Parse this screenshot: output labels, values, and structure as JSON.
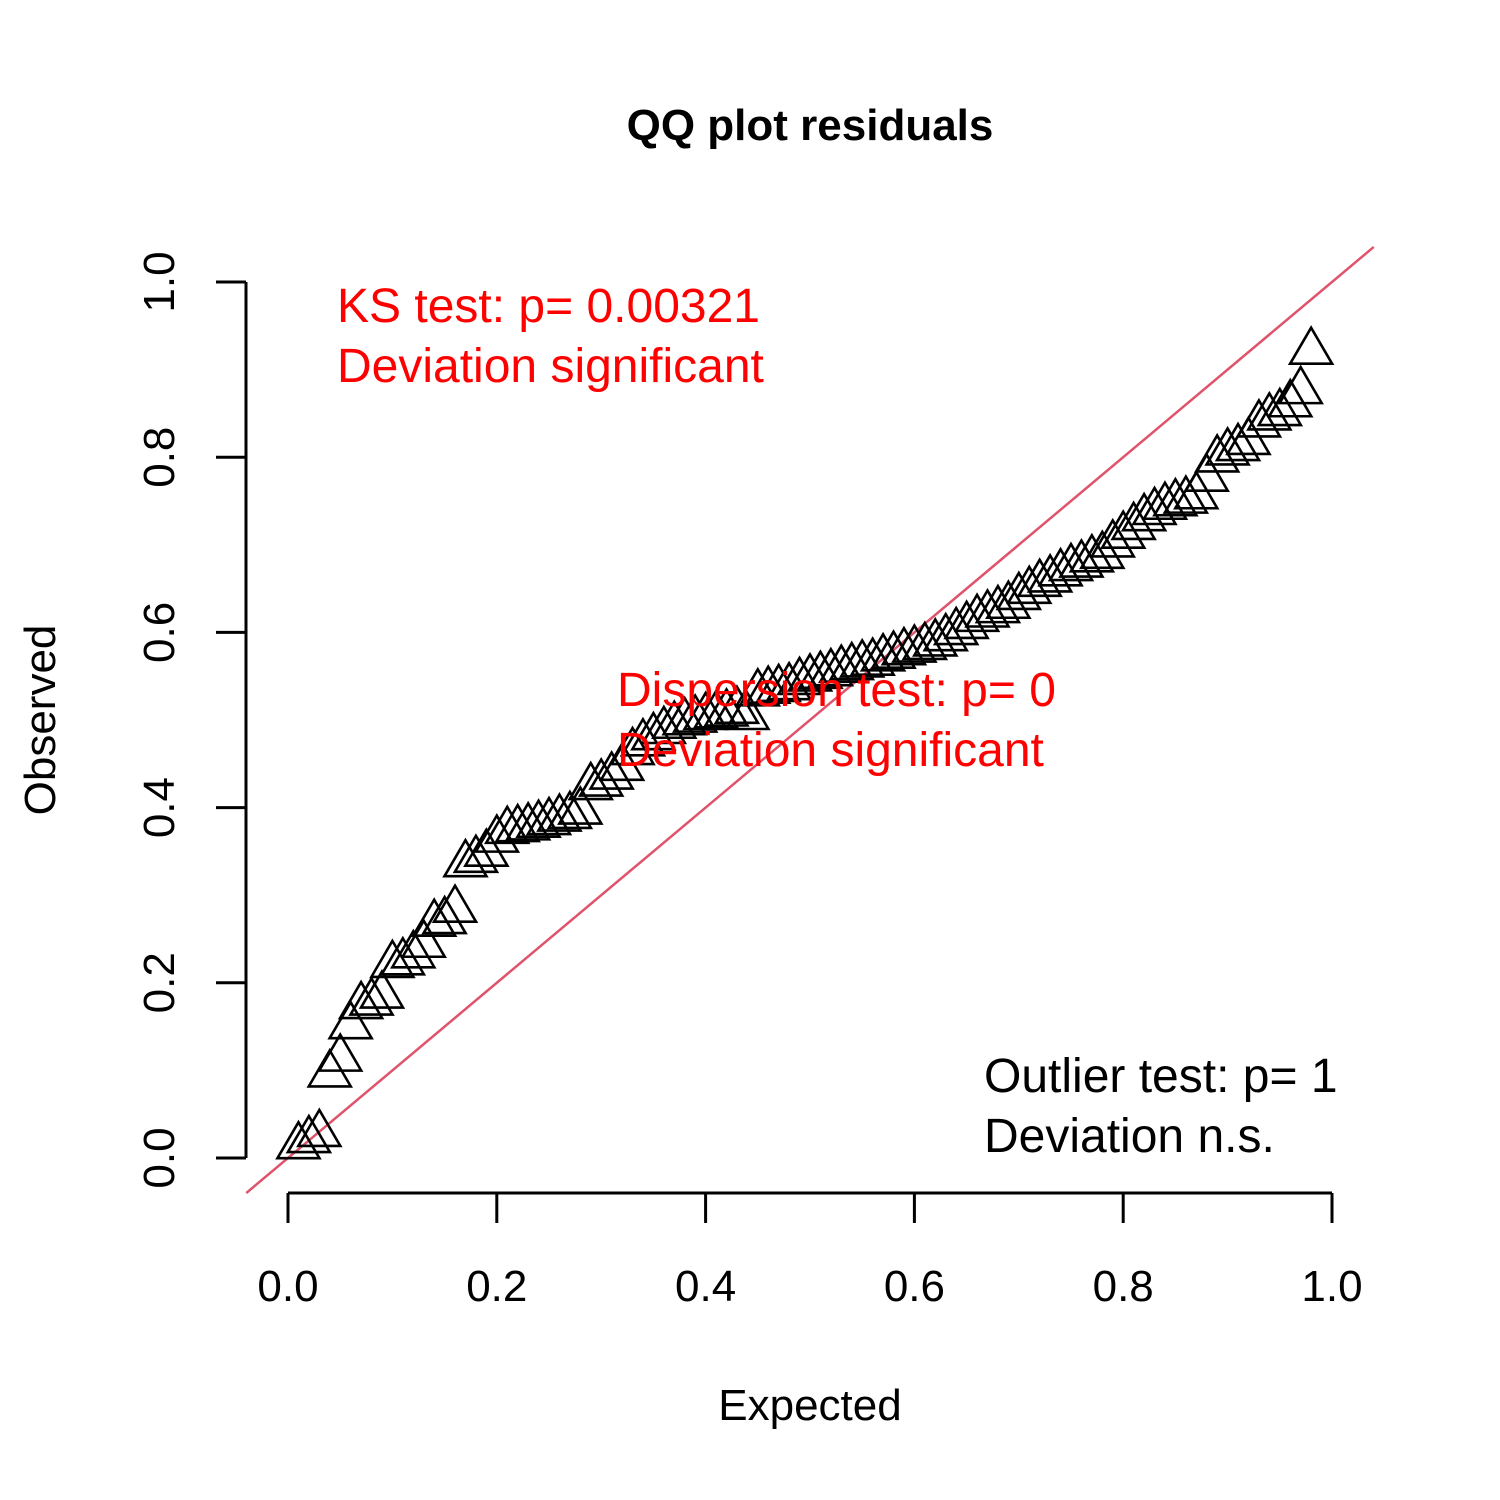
{
  "chart_data": {
    "type": "scatter",
    "title": "QQ plot residuals",
    "xlabel": "Expected",
    "ylabel": "Observed",
    "xlim": [
      0.0,
      1.0
    ],
    "ylim": [
      0.0,
      1.0
    ],
    "x_ticks": [
      "0.0",
      "0.2",
      "0.4",
      "0.6",
      "0.8",
      "1.0"
    ],
    "y_ticks": [
      "0.0",
      "0.2",
      "0.4",
      "0.6",
      "0.8",
      "1.0"
    ],
    "grid": false,
    "marker": "open-triangle",
    "marker_color": "#000000",
    "reference_line": {
      "slope": 1,
      "intercept": 0,
      "color": "#DF536B"
    },
    "annotations": [
      {
        "lines": [
          "KS test: p= 0.00321",
          "Deviation  significant"
        ],
        "color": "#FF0000",
        "position": "top-left"
      },
      {
        "lines": [
          "Dispersion test: p= 0",
          "Deviation  significant"
        ],
        "color": "#FF0000",
        "position": "center"
      },
      {
        "lines": [
          "Outlier test: p= 1",
          "Deviation  n.s."
        ],
        "color": "#000000",
        "position": "bottom-right"
      }
    ],
    "points": [
      [
        0.01,
        0.018
      ],
      [
        0.02,
        0.025
      ],
      [
        0.03,
        0.032
      ],
      [
        0.04,
        0.1
      ],
      [
        0.05,
        0.118
      ],
      [
        0.06,
        0.155
      ],
      [
        0.07,
        0.178
      ],
      [
        0.08,
        0.182
      ],
      [
        0.09,
        0.19
      ],
      [
        0.1,
        0.225
      ],
      [
        0.11,
        0.228
      ],
      [
        0.12,
        0.236
      ],
      [
        0.13,
        0.248
      ],
      [
        0.14,
        0.272
      ],
      [
        0.15,
        0.275
      ],
      [
        0.16,
        0.288
      ],
      [
        0.17,
        0.34
      ],
      [
        0.18,
        0.345
      ],
      [
        0.19,
        0.352
      ],
      [
        0.2,
        0.368
      ],
      [
        0.21,
        0.378
      ],
      [
        0.22,
        0.38
      ],
      [
        0.23,
        0.382
      ],
      [
        0.24,
        0.385
      ],
      [
        0.25,
        0.388
      ],
      [
        0.26,
        0.392
      ],
      [
        0.27,
        0.395
      ],
      [
        0.28,
        0.4
      ],
      [
        0.29,
        0.428
      ],
      [
        0.3,
        0.432
      ],
      [
        0.31,
        0.44
      ],
      [
        0.32,
        0.45
      ],
      [
        0.33,
        0.468
      ],
      [
        0.34,
        0.478
      ],
      [
        0.35,
        0.485
      ],
      [
        0.36,
        0.492
      ],
      [
        0.37,
        0.498
      ],
      [
        0.38,
        0.502
      ],
      [
        0.39,
        0.505
      ],
      [
        0.4,
        0.508
      ],
      [
        0.41,
        0.51
      ],
      [
        0.42,
        0.512
      ],
      [
        0.43,
        0.515
      ],
      [
        0.44,
        0.508
      ],
      [
        0.45,
        0.535
      ],
      [
        0.46,
        0.538
      ],
      [
        0.47,
        0.54
      ],
      [
        0.48,
        0.542
      ],
      [
        0.49,
        0.548
      ],
      [
        0.5,
        0.552
      ],
      [
        0.51,
        0.555
      ],
      [
        0.52,
        0.558
      ],
      [
        0.53,
        0.562
      ],
      [
        0.54,
        0.565
      ],
      [
        0.55,
        0.568
      ],
      [
        0.56,
        0.57
      ],
      [
        0.57,
        0.575
      ],
      [
        0.58,
        0.578
      ],
      [
        0.59,
        0.582
      ],
      [
        0.6,
        0.585
      ],
      [
        0.61,
        0.588
      ],
      [
        0.62,
        0.592
      ],
      [
        0.63,
        0.598
      ],
      [
        0.64,
        0.605
      ],
      [
        0.65,
        0.612
      ],
      [
        0.66,
        0.62
      ],
      [
        0.67,
        0.625
      ],
      [
        0.68,
        0.63
      ],
      [
        0.69,
        0.635
      ],
      [
        0.7,
        0.645
      ],
      [
        0.71,
        0.652
      ],
      [
        0.72,
        0.66
      ],
      [
        0.73,
        0.665
      ],
      [
        0.74,
        0.672
      ],
      [
        0.75,
        0.678
      ],
      [
        0.76,
        0.682
      ],
      [
        0.77,
        0.688
      ],
      [
        0.78,
        0.692
      ],
      [
        0.79,
        0.705
      ],
      [
        0.8,
        0.715
      ],
      [
        0.81,
        0.725
      ],
      [
        0.82,
        0.735
      ],
      [
        0.83,
        0.742
      ],
      [
        0.84,
        0.748
      ],
      [
        0.85,
        0.752
      ],
      [
        0.86,
        0.755
      ],
      [
        0.87,
        0.76
      ],
      [
        0.88,
        0.78
      ],
      [
        0.89,
        0.802
      ],
      [
        0.9,
        0.81
      ],
      [
        0.91,
        0.815
      ],
      [
        0.92,
        0.822
      ],
      [
        0.93,
        0.842
      ],
      [
        0.94,
        0.85
      ],
      [
        0.95,
        0.855
      ],
      [
        0.96,
        0.865
      ],
      [
        0.97,
        0.88
      ],
      [
        0.98,
        0.925
      ]
    ]
  }
}
